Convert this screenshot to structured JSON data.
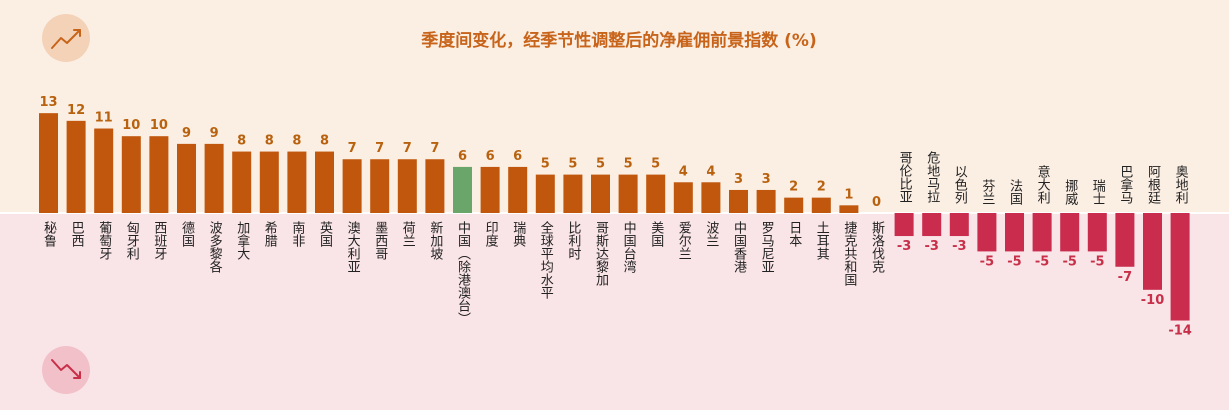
{
  "chart_data": {
    "type": "bar",
    "title": "季度间变化，经季节性调整后的净雇佣前景指数 (%)",
    "xlabel": "",
    "ylabel": "",
    "ylim": [
      -14,
      13
    ],
    "grid": false,
    "categories": [
      "秘鲁",
      "巴西",
      "葡萄牙",
      "匈牙利",
      "西班牙",
      "德国",
      "波多黎各",
      "加拿大",
      "希腊",
      "南非",
      "英国",
      "澳大利亚",
      "墨西哥",
      "荷兰",
      "新加坡",
      "中国（除港澳台）",
      "印度",
      "瑞典",
      "全球平均水平",
      "比利时",
      "哥斯达黎加",
      "中国台湾",
      "美国",
      "爱尔兰",
      "波兰",
      "中国香港",
      "罗马尼亚",
      "日本",
      "土耳其",
      "捷克共和国",
      "斯洛伐克",
      "哥伦比亚",
      "危地马拉",
      "以色列",
      "芬兰",
      "法国",
      "意大利",
      "挪威",
      "瑞士",
      "巴拿马",
      "阿根廷",
      "奥地利"
    ],
    "values": [
      13,
      12,
      11,
      10,
      10,
      9,
      9,
      8,
      8,
      8,
      8,
      7,
      7,
      7,
      7,
      6,
      6,
      6,
      5,
      5,
      5,
      5,
      5,
      4,
      4,
      3,
      3,
      2,
      2,
      1,
      0,
      -3,
      -3,
      -3,
      -5,
      -5,
      -5,
      -5,
      -5,
      -7,
      -10,
      -14
    ],
    "highlight": "中国（除港澳台）",
    "colors": {
      "positive": "#c0570c",
      "negative": "#c92c4c",
      "highlight": "#6aa56a",
      "positive_label": "#b8620f",
      "negative_label": "#c8304a",
      "top_bg": "#fbeee3",
      "bottom_bg": "#f9e4e7",
      "title": "#c8641a"
    }
  },
  "icons": {
    "up": "trend-up-icon",
    "down": "trend-down-icon"
  }
}
